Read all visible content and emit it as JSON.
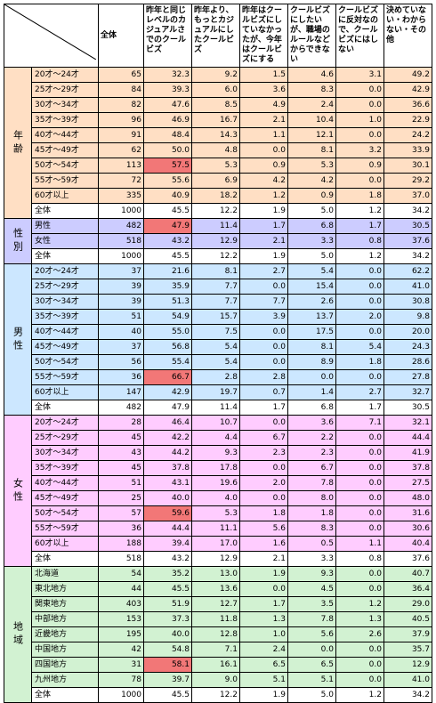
{
  "headers": {
    "total": "全体",
    "cols": [
      "昨年と同じレベルのカジュアルさでのクールビズ",
      "昨年より、もっとカジュアルにしたクールビズ",
      "昨年はクールビズにしていなかったが、今年はクールビズにする",
      "クールビズにしたいが、職場のルールなどからできない",
      "クールビズに反対なので、クールビズにはしない",
      "決めていない・わからない・その他"
    ]
  },
  "colors": {
    "age_bg": "#FFDFC4",
    "gender_bg": "#CCCCFF",
    "male_bg": "#CCE7FF",
    "female_bg": "#FFCCFF",
    "region_bg": "#D2F2D2",
    "highlight": "#F27777",
    "white": "#FFFFFF"
  },
  "groups": [
    {
      "key": "age",
      "label": "年齢",
      "bg": "#FFDFC4",
      "rows": [
        {
          "label": "20才～24才",
          "total": "65",
          "values": [
            "32.3",
            "9.2",
            "1.5",
            "4.6",
            "3.1",
            "49.2"
          ]
        },
        {
          "label": "25才～29才",
          "total": "84",
          "values": [
            "39.3",
            "6.0",
            "3.6",
            "8.3",
            "0.0",
            "42.9"
          ]
        },
        {
          "label": "30才～34才",
          "total": "82",
          "values": [
            "47.6",
            "8.5",
            "4.9",
            "2.4",
            "0.0",
            "36.6"
          ]
        },
        {
          "label": "35才～39才",
          "total": "96",
          "values": [
            "46.9",
            "16.7",
            "2.1",
            "10.4",
            "1.0",
            "22.9"
          ]
        },
        {
          "label": "40才～44才",
          "total": "91",
          "values": [
            "48.4",
            "14.3",
            "1.1",
            "12.1",
            "0.0",
            "24.2"
          ]
        },
        {
          "label": "45才～49才",
          "total": "62",
          "values": [
            "50.0",
            "4.8",
            "0.0",
            "8.1",
            "3.2",
            "33.9"
          ]
        },
        {
          "label": "50才～54才",
          "total": "113",
          "values": [
            "57.5",
            "5.3",
            "0.9",
            "5.3",
            "0.9",
            "30.1"
          ],
          "hl": 0
        },
        {
          "label": "55才～59才",
          "total": "72",
          "values": [
            "55.6",
            "6.9",
            "4.2",
            "4.2",
            "0.0",
            "29.2"
          ]
        },
        {
          "label": "60才以上",
          "total": "335",
          "values": [
            "40.9",
            "18.2",
            "1.2",
            "0.9",
            "1.8",
            "37.0"
          ]
        },
        {
          "label": "全体",
          "total": "1000",
          "values": [
            "45.5",
            "12.2",
            "1.9",
            "5.0",
            "1.2",
            "34.2"
          ],
          "total_row": true
        }
      ]
    },
    {
      "key": "gender",
      "label": "性別",
      "bg": "#CCCCFF",
      "rows": [
        {
          "label": "男性",
          "total": "482",
          "values": [
            "47.9",
            "11.4",
            "1.7",
            "6.8",
            "1.7",
            "30.5"
          ],
          "hl": 0
        },
        {
          "label": "女性",
          "total": "518",
          "values": [
            "43.2",
            "12.9",
            "2.1",
            "3.3",
            "0.8",
            "37.6"
          ]
        },
        {
          "label": "全体",
          "total": "1000",
          "values": [
            "45.5",
            "12.2",
            "1.9",
            "5.0",
            "1.2",
            "34.2"
          ],
          "total_row": true
        }
      ]
    },
    {
      "key": "male",
      "label": "男性",
      "bg": "#CCE7FF",
      "rows": [
        {
          "label": "20才～24才",
          "total": "37",
          "values": [
            "21.6",
            "8.1",
            "2.7",
            "5.4",
            "0.0",
            "62.2"
          ]
        },
        {
          "label": "25才～29才",
          "total": "39",
          "values": [
            "35.9",
            "7.7",
            "0.0",
            "15.4",
            "0.0",
            "41.0"
          ]
        },
        {
          "label": "30才～34才",
          "total": "39",
          "values": [
            "51.3",
            "7.7",
            "7.7",
            "2.6",
            "0.0",
            "30.8"
          ]
        },
        {
          "label": "35才～39才",
          "total": "51",
          "values": [
            "54.9",
            "15.7",
            "3.9",
            "13.7",
            "2.0",
            "9.8"
          ]
        },
        {
          "label": "40才～44才",
          "total": "40",
          "values": [
            "55.0",
            "7.5",
            "0.0",
            "17.5",
            "0.0",
            "20.0"
          ]
        },
        {
          "label": "45才～49才",
          "total": "37",
          "values": [
            "56.8",
            "5.4",
            "0.0",
            "8.1",
            "5.4",
            "24.3"
          ]
        },
        {
          "label": "50才～54才",
          "total": "56",
          "values": [
            "55.4",
            "5.4",
            "0.0",
            "8.9",
            "1.8",
            "28.6"
          ]
        },
        {
          "label": "55才～59才",
          "total": "36",
          "values": [
            "66.7",
            "2.8",
            "2.8",
            "0.0",
            "0.0",
            "27.8"
          ],
          "hl": 0
        },
        {
          "label": "60才以上",
          "total": "147",
          "values": [
            "42.9",
            "19.7",
            "0.7",
            "1.4",
            "2.7",
            "32.7"
          ]
        },
        {
          "label": "全体",
          "total": "482",
          "values": [
            "47.9",
            "11.4",
            "1.7",
            "6.8",
            "1.7",
            "30.5"
          ],
          "total_row": true
        }
      ]
    },
    {
      "key": "female",
      "label": "女性",
      "bg": "#FFCCFF",
      "rows": [
        {
          "label": "20才～24才",
          "total": "28",
          "values": [
            "46.4",
            "10.7",
            "0.0",
            "3.6",
            "7.1",
            "32.1"
          ]
        },
        {
          "label": "25才～29才",
          "total": "45",
          "values": [
            "42.2",
            "4.4",
            "6.7",
            "2.2",
            "0.0",
            "44.4"
          ]
        },
        {
          "label": "30才～34才",
          "total": "43",
          "values": [
            "44.2",
            "9.3",
            "2.3",
            "2.3",
            "0.0",
            "41.9"
          ]
        },
        {
          "label": "35才～39才",
          "total": "45",
          "values": [
            "37.8",
            "17.8",
            "0.0",
            "6.7",
            "0.0",
            "37.8"
          ]
        },
        {
          "label": "40才～44才",
          "total": "51",
          "values": [
            "43.1",
            "19.6",
            "2.0",
            "7.8",
            "0.0",
            "27.5"
          ]
        },
        {
          "label": "45才～49才",
          "total": "25",
          "values": [
            "40.0",
            "4.0",
            "0.0",
            "8.0",
            "0.0",
            "48.0"
          ]
        },
        {
          "label": "50才～54才",
          "total": "57",
          "values": [
            "59.6",
            "5.3",
            "1.8",
            "1.8",
            "0.0",
            "31.6"
          ],
          "hl": 0
        },
        {
          "label": "55才～59才",
          "total": "36",
          "values": [
            "44.4",
            "11.1",
            "5.6",
            "8.3",
            "0.0",
            "30.6"
          ]
        },
        {
          "label": "60才以上",
          "total": "188",
          "values": [
            "39.4",
            "17.0",
            "1.6",
            "0.5",
            "1.1",
            "40.4"
          ]
        },
        {
          "label": "全体",
          "total": "518",
          "values": [
            "43.2",
            "12.9",
            "2.1",
            "3.3",
            "0.8",
            "37.6"
          ],
          "total_row": true
        }
      ]
    },
    {
      "key": "region",
      "label": "地域",
      "bg": "#D2F2D2",
      "rows": [
        {
          "label": "北海道",
          "total": "54",
          "values": [
            "35.2",
            "13.0",
            "1.9",
            "9.3",
            "0.0",
            "40.7"
          ]
        },
        {
          "label": "東北地方",
          "total": "44",
          "values": [
            "45.5",
            "13.6",
            "0.0",
            "4.5",
            "0.0",
            "36.4"
          ]
        },
        {
          "label": "関東地方",
          "total": "403",
          "values": [
            "51.9",
            "12.7",
            "1.7",
            "3.5",
            "1.2",
            "29.0"
          ]
        },
        {
          "label": "中部地方",
          "total": "153",
          "values": [
            "37.3",
            "11.8",
            "1.3",
            "7.8",
            "1.3",
            "40.5"
          ]
        },
        {
          "label": "近畿地方",
          "total": "195",
          "values": [
            "40.0",
            "12.8",
            "1.0",
            "5.6",
            "2.6",
            "37.9"
          ]
        },
        {
          "label": "中国地方",
          "total": "42",
          "values": [
            "54.8",
            "7.1",
            "2.4",
            "0.0",
            "0.0",
            "35.7"
          ]
        },
        {
          "label": "四国地方",
          "total": "31",
          "values": [
            "58.1",
            "16.1",
            "6.5",
            "6.5",
            "0.0",
            "12.9"
          ],
          "hl": 0
        },
        {
          "label": "九州地方",
          "total": "78",
          "values": [
            "39.7",
            "9.0",
            "5.1",
            "5.1",
            "0.0",
            "41.0"
          ]
        },
        {
          "label": "全体",
          "total": "1000",
          "values": [
            "45.5",
            "12.2",
            "1.9",
            "5.0",
            "1.2",
            "34.2"
          ],
          "total_row": true
        }
      ]
    }
  ]
}
